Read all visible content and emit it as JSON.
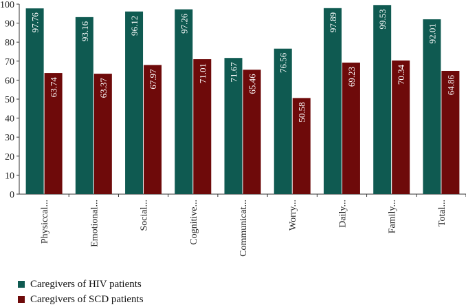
{
  "chart_data": {
    "type": "bar",
    "categories": [
      "Physiccal...",
      "Emotional...",
      "Social...",
      "Cognitive...",
      "Communicat...",
      "Worry...",
      "Daily...",
      "Family...",
      "Total..."
    ],
    "series": [
      {
        "name": "Caregivers of HIV patients",
        "color": "#0f5a51",
        "values": [
          97.76,
          93.16,
          96.12,
          97.26,
          71.67,
          76.56,
          97.89,
          99.53,
          92.01
        ]
      },
      {
        "name": "Caregivers of SCD patients",
        "color": "#6e0a0a",
        "values": [
          63.74,
          63.37,
          67.97,
          71.01,
          65.46,
          50.58,
          69.23,
          70.34,
          64.86
        ]
      }
    ],
    "ylim": [
      0,
      100
    ],
    "yticks": [
      0,
      10,
      20,
      30,
      40,
      50,
      60,
      70,
      80,
      90,
      100
    ],
    "title": "",
    "xlabel": "",
    "ylabel": "",
    "legend_position": "bottom-left"
  }
}
